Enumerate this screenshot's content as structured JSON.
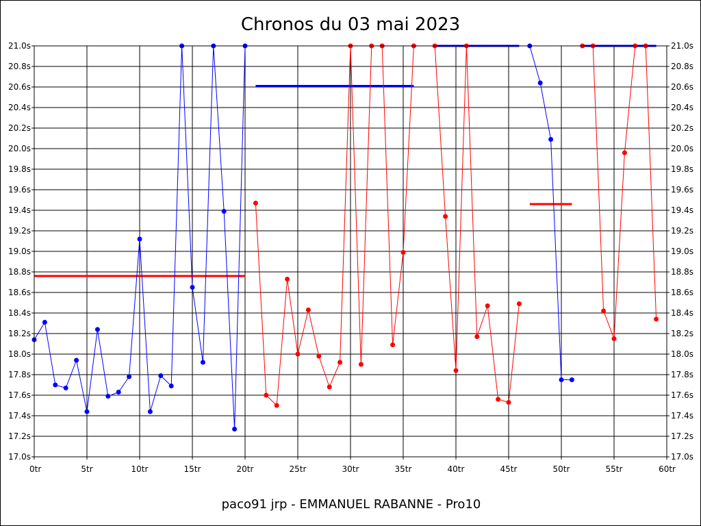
{
  "chart_data": {
    "type": "line",
    "title": "Chronos du 03 mai 2023",
    "footer": "paco91 jrp - EMMANUEL RABANNE - Pro10",
    "xlim": [
      0,
      60
    ],
    "ylim": [
      17.0,
      21.0
    ],
    "grid": true,
    "x_ticks": [
      0,
      5,
      10,
      15,
      20,
      25,
      30,
      35,
      40,
      45,
      50,
      55,
      60
    ],
    "x_tick_labels": [
      "0tr",
      "5tr",
      "10tr",
      "15tr",
      "20tr",
      "25tr",
      "30tr",
      "35tr",
      "40tr",
      "45tr",
      "50tr",
      "55tr",
      "60tr"
    ],
    "y_ticks": [
      17.0,
      17.2,
      17.4,
      17.6,
      17.8,
      18.0,
      18.2,
      18.4,
      18.6,
      18.8,
      19.0,
      19.2,
      19.4,
      19.6,
      19.8,
      20.0,
      20.2,
      20.4,
      20.6,
      20.8,
      21.0
    ],
    "y_tick_labels": [
      "17.0s",
      "17.2s",
      "17.4s",
      "17.6s",
      "17.8s",
      "18.0s",
      "18.2s",
      "18.4s",
      "18.6s",
      "18.8s",
      "19.0s",
      "19.2s",
      "19.4s",
      "19.6s",
      "19.8s",
      "20.0s",
      "20.2s",
      "20.4s",
      "20.6s",
      "20.8s",
      "21.0s"
    ],
    "series": [
      {
        "color": "#0000ff",
        "segments": [
          [
            [
              0,
              18.14
            ],
            [
              1,
              18.31
            ],
            [
              2,
              17.7
            ],
            [
              3,
              17.67
            ],
            [
              4,
              17.94
            ],
            [
              5,
              17.44
            ],
            [
              6,
              18.24
            ],
            [
              7,
              17.59
            ],
            [
              8,
              17.63
            ],
            [
              9,
              17.78
            ],
            [
              10,
              19.12
            ],
            [
              11,
              17.44
            ],
            [
              12,
              17.79
            ],
            [
              13,
              17.69
            ],
            [
              14,
              21.0
            ],
            [
              15,
              18.65
            ],
            [
              16,
              17.92
            ],
            [
              17,
              21.0
            ],
            [
              18,
              19.39
            ],
            [
              19,
              17.27
            ],
            [
              20,
              21.0
            ]
          ],
          [
            [
              47,
              21.0
            ],
            [
              48,
              20.64
            ],
            [
              49,
              20.09
            ],
            [
              50,
              17.75
            ],
            [
              51,
              17.75
            ]
          ]
        ]
      },
      {
        "color": "#ff0000",
        "segments": [
          [
            [
              21,
              19.47
            ],
            [
              22,
              17.6
            ],
            [
              23,
              17.5
            ],
            [
              24,
              18.73
            ],
            [
              25,
              18.0
            ],
            [
              26,
              18.43
            ],
            [
              27,
              17.98
            ],
            [
              28,
              17.68
            ],
            [
              29,
              17.92
            ],
            [
              30,
              21.0
            ],
            [
              31,
              17.9
            ],
            [
              32,
              21.0
            ],
            [
              33,
              21.0
            ],
            [
              34,
              18.09
            ],
            [
              35,
              18.99
            ],
            [
              36,
              21.0
            ]
          ],
          [
            [
              38,
              21.0
            ],
            [
              39,
              19.34
            ],
            [
              40,
              17.84
            ],
            [
              41,
              21.0
            ],
            [
              42,
              18.17
            ],
            [
              43,
              18.47
            ],
            [
              44,
              17.56
            ],
            [
              45,
              17.53
            ],
            [
              46,
              18.49
            ]
          ],
          [
            [
              52,
              21.0
            ],
            [
              53,
              21.0
            ],
            [
              54,
              18.42
            ],
            [
              55,
              18.15
            ],
            [
              56,
              19.96
            ],
            [
              57,
              21.0
            ],
            [
              58,
              21.0
            ],
            [
              59,
              18.34
            ]
          ]
        ]
      }
    ],
    "reference_lines": [
      {
        "color": "#ff0000",
        "x": [
          0,
          20
        ],
        "y": 18.76
      },
      {
        "color": "#0000ff",
        "x": [
          21,
          36
        ],
        "y": 20.61
      },
      {
        "color": "#0000ff",
        "x": [
          38,
          46
        ],
        "y": 21.0
      },
      {
        "color": "#ff0000",
        "x": [
          47,
          51
        ],
        "y": 19.46
      },
      {
        "color": "#0000ff",
        "x": [
          52,
          59
        ],
        "y": 21.0
      }
    ]
  }
}
